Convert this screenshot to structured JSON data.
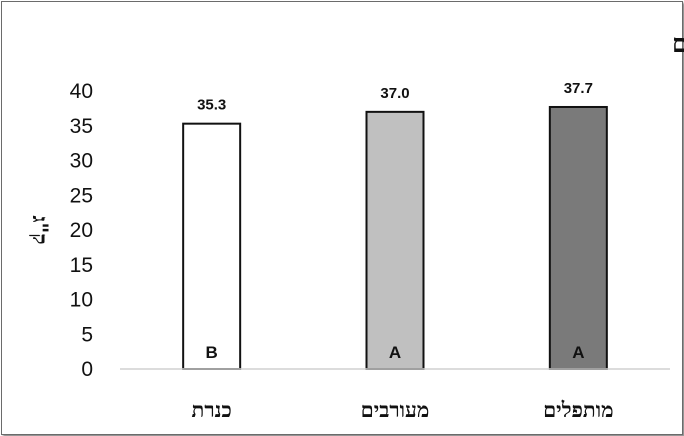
{
  "chart_data": {
    "type": "bar",
    "title": "משקל אשכול קטיפים עיקריים",
    "ylabel": "ק\"ג",
    "xlabel": "",
    "categories": [
      "כנרת",
      "מעורבים",
      "מותפלים"
    ],
    "values": [
      35.3,
      37.0,
      37.7
    ],
    "data_labels": [
      "35.3",
      "37.0",
      "37.7"
    ],
    "letters": [
      "B",
      "A",
      "A"
    ],
    "colors": [
      "#ffffff",
      "#c0c0c0",
      "#7a7a7a"
    ],
    "ylim": [
      0,
      40
    ],
    "yticks": [
      0,
      5,
      10,
      15,
      20,
      25,
      30,
      35,
      40
    ],
    "grid": false,
    "legend": "none"
  }
}
